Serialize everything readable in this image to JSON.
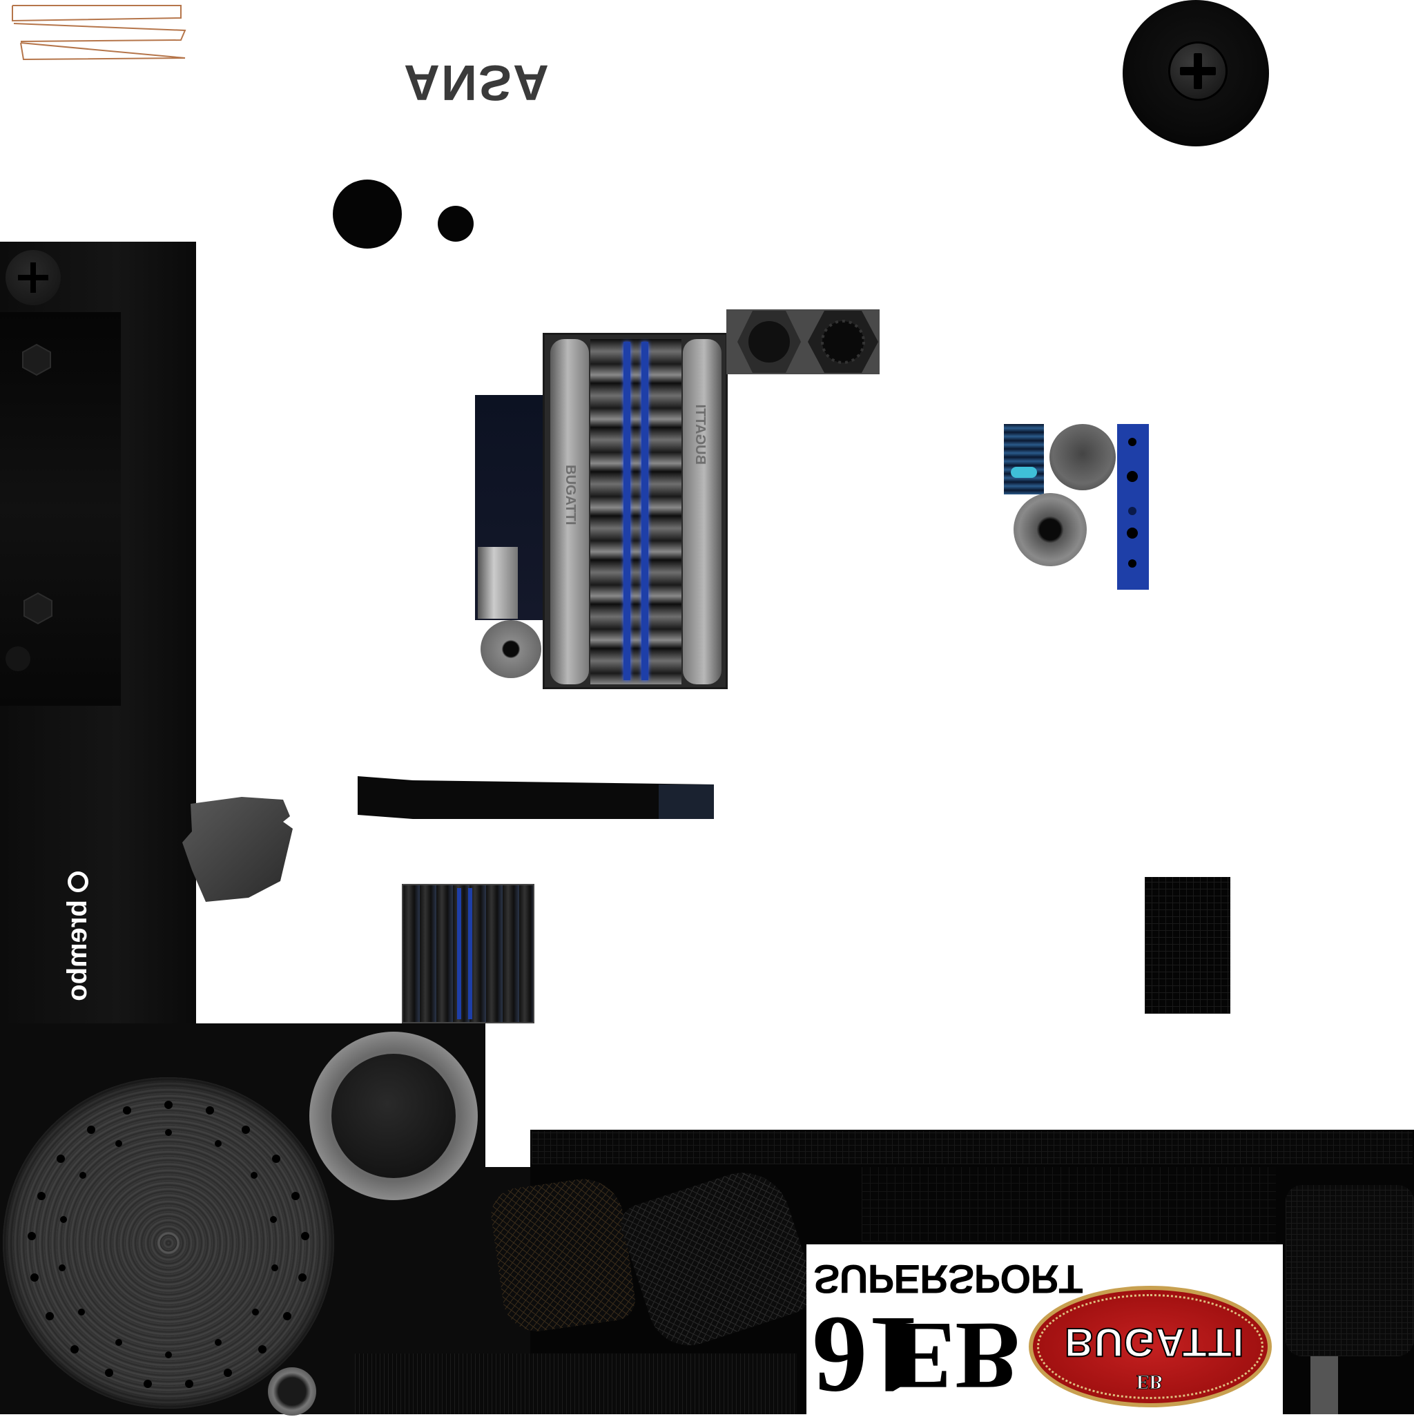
{
  "texture_atlas": {
    "labels": {
      "ansa": "ANSA",
      "brembo": "brembo",
      "bugatti_manifold_left": "BUGATTI",
      "bugatti_manifold_right": "BUGATTI",
      "supersport": "SUPERSPORT",
      "model_number": "16",
      "eb_monogram": "EB",
      "bugatti_badge": "BUGATTI",
      "bugatti_badge_monogram": "EB"
    },
    "icons": {
      "screw_head": "plus-screw-icon",
      "hex_nut": "hex-nut-icon"
    },
    "colors": {
      "background": "#ffffff",
      "carbon_black": "#0a0a0a",
      "engine_blue": "#1e3fa8",
      "badge_red": "#b01818",
      "badge_gold": "#c8a050",
      "metal_grey": "#8a8a8a",
      "copper_line": "#b5754a"
    }
  }
}
